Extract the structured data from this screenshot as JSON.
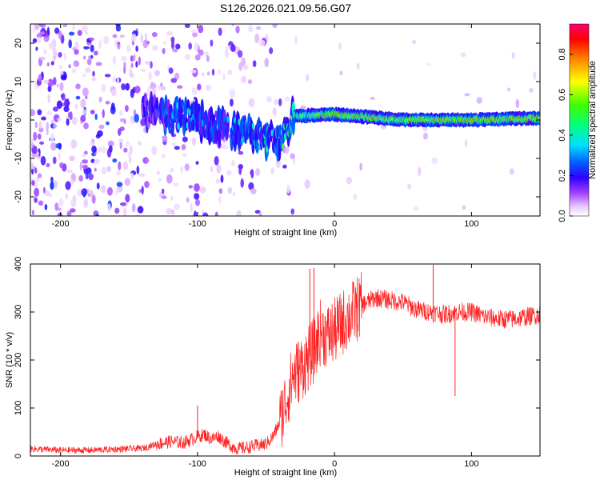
{
  "title": "S126.2026.021.09.56.G07",
  "chart_data": [
    {
      "type": "heatmap",
      "xlabel": "Height of straight line (km)",
      "ylabel": "Frequency (Hz)",
      "xlim": [
        -222,
        150
      ],
      "ylim": [
        -25,
        25
      ],
      "xticks": [
        -200,
        -100,
        0,
        100
      ],
      "yticks": [
        -20,
        -10,
        0,
        10,
        20
      ],
      "colorbar": {
        "label": "Normalized spectral amplitude",
        "range": [
          0,
          0.95
        ],
        "ticks": [
          0.0,
          0.2,
          0.4,
          0.6,
          0.8
        ],
        "colors": [
          "#ffffff",
          "#d9b3ff",
          "#8a00ff",
          "#2a00ff",
          "#0080ff",
          "#00ffff",
          "#00ff40",
          "#ffff00",
          "#ff8000",
          "#ff0000",
          "#ff0080"
        ]
      },
      "ridge": {
        "description_points": [
          {
            "x": -130,
            "freq": 2,
            "amp": 0.2
          },
          {
            "x": -110,
            "freq": 1,
            "amp": 0.35
          },
          {
            "x": -80,
            "freq": -2,
            "amp": 0.3
          },
          {
            "x": -60,
            "freq": -4,
            "amp": 0.35
          },
          {
            "x": -40,
            "freq": -6,
            "amp": 0.45
          },
          {
            "x": -35,
            "freq": -2,
            "amp": 0.4
          },
          {
            "x": -30,
            "freq": 1,
            "amp": 0.55
          },
          {
            "x": 0,
            "freq": 1.5,
            "amp": 0.8
          },
          {
            "x": 50,
            "freq": 0,
            "amp": 0.75
          },
          {
            "x": 100,
            "freq": 0,
            "amp": 0.8
          },
          {
            "x": 150,
            "freq": 0.5,
            "amp": 0.8
          }
        ]
      }
    },
    {
      "type": "line",
      "xlabel": "Height of straight line (km)",
      "ylabel": "SNR (10 * v/v)",
      "xlim": [
        -222,
        150
      ],
      "ylim": [
        0,
        400
      ],
      "xticks": [
        -200,
        -100,
        0,
        100
      ],
      "yticks": [
        0,
        100,
        200,
        300,
        400
      ],
      "color": "#ff2020",
      "series": [
        {
          "name": "SNR",
          "x": [
            -222,
            -200,
            -180,
            -160,
            -140,
            -130,
            -120,
            -110,
            -100,
            -95,
            -90,
            -85,
            -80,
            -75,
            -70,
            -60,
            -50,
            -45,
            -40,
            -35,
            -30,
            -25,
            -20,
            -15,
            -10,
            -5,
            0,
            10,
            20,
            30,
            40,
            50,
            60,
            70,
            80,
            90,
            100,
            110,
            120,
            130,
            140,
            150
          ],
          "y": [
            15,
            12,
            12,
            14,
            16,
            25,
            30,
            28,
            40,
            45,
            35,
            42,
            30,
            20,
            15,
            20,
            25,
            40,
            70,
            120,
            170,
            180,
            200,
            220,
            260,
            250,
            260,
            290,
            315,
            330,
            325,
            320,
            305,
            300,
            295,
            300,
            300,
            290,
            285,
            285,
            290,
            295
          ]
        }
      ],
      "spikes": [
        {
          "x": -100,
          "y": 105
        },
        {
          "x": -18,
          "y": 390
        },
        {
          "x": -15,
          "y": 392
        },
        {
          "x": 72,
          "y": 398
        },
        {
          "x": 88,
          "y": 125
        }
      ]
    }
  ]
}
